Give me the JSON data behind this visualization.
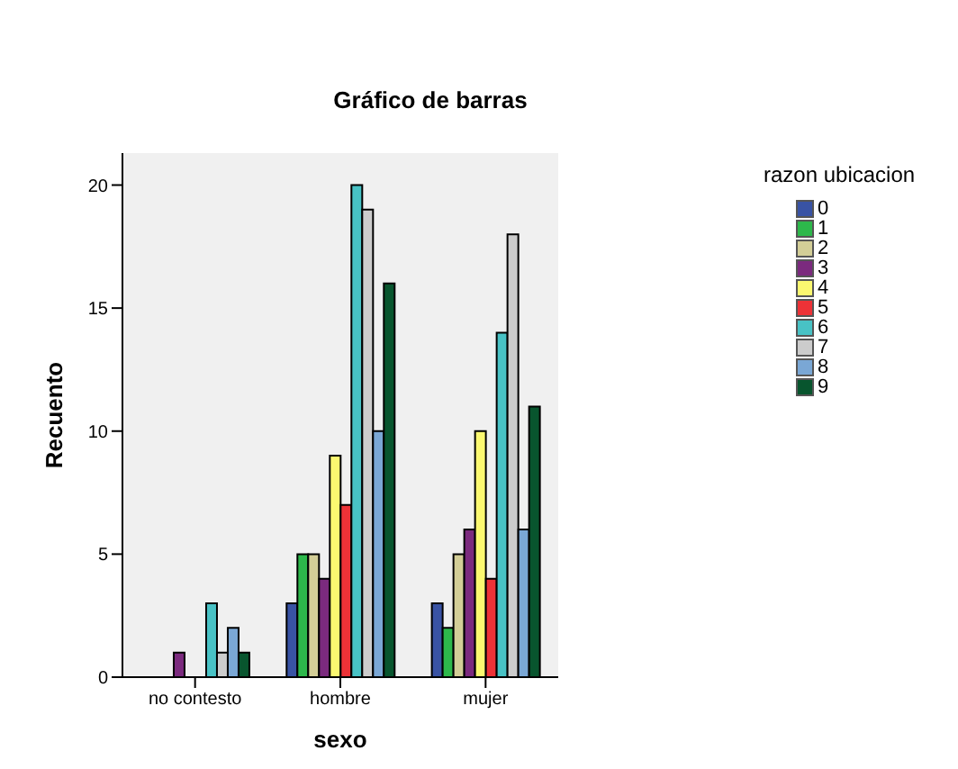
{
  "chart_data": {
    "type": "bar",
    "title": "Gráfico de barras",
    "xlabel": "sexo",
    "ylabel": "Recuento",
    "legend_title": "razon ubicacion",
    "legend": "right",
    "categories": [
      "no contesto",
      "hombre",
      "mujer"
    ],
    "ylim": [
      0,
      21.3
    ],
    "yticks": [
      0,
      5,
      10,
      15,
      20
    ],
    "series": [
      {
        "name": "0",
        "color": "#3953a4",
        "values": [
          0,
          3,
          3
        ]
      },
      {
        "name": "1",
        "color": "#2db84b",
        "values": [
          0,
          5,
          2
        ]
      },
      {
        "name": "2",
        "color": "#d3ce97",
        "values": [
          0,
          5,
          5
        ]
      },
      {
        "name": "3",
        "color": "#7b2a7e",
        "values": [
          1,
          4,
          6
        ]
      },
      {
        "name": "4",
        "color": "#fbf870",
        "values": [
          0,
          9,
          10
        ]
      },
      {
        "name": "5",
        "color": "#ed3237",
        "values": [
          0,
          7,
          4
        ]
      },
      {
        "name": "6",
        "color": "#48c2c5",
        "values": [
          3,
          20,
          14
        ]
      },
      {
        "name": "7",
        "color": "#cccccc",
        "values": [
          1,
          19,
          18
        ]
      },
      {
        "name": "8",
        "color": "#7aa7d5",
        "values": [
          2,
          10,
          6
        ]
      },
      {
        "name": "9",
        "color": "#08552e",
        "values": [
          1,
          16,
          11
        ]
      }
    ]
  }
}
